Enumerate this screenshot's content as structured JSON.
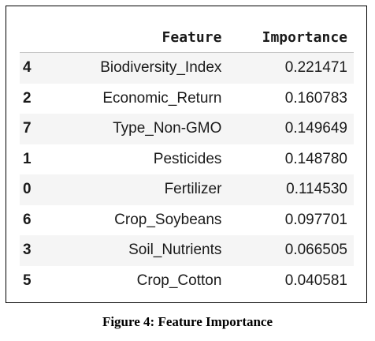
{
  "table": {
    "columns": [
      "Feature",
      "Importance"
    ],
    "rows": [
      {
        "index": "4",
        "feature": "Biodiversity_Index",
        "importance": "0.221471"
      },
      {
        "index": "2",
        "feature": "Economic_Return",
        "importance": "0.160783"
      },
      {
        "index": "7",
        "feature": "Type_Non-GMO",
        "importance": "0.149649"
      },
      {
        "index": "1",
        "feature": "Pesticides",
        "importance": "0.148780"
      },
      {
        "index": "0",
        "feature": "Fertilizer",
        "importance": "0.114530"
      },
      {
        "index": "6",
        "feature": "Crop_Soybeans",
        "importance": "0.097701"
      },
      {
        "index": "3",
        "feature": "Soil_Nutrients",
        "importance": "0.066505"
      },
      {
        "index": "5",
        "feature": "Crop_Cotton",
        "importance": "0.040581"
      }
    ]
  },
  "caption": "Figure 4: Feature Importance"
}
